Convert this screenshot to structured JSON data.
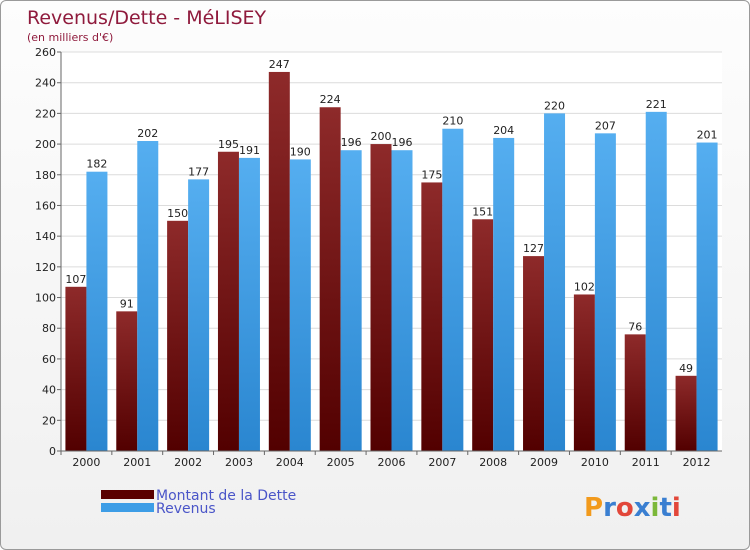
{
  "chart_data": {
    "type": "bar",
    "title": "Revenus/Dette - MéLISEY",
    "subtitle": "(en milliers d'€)",
    "categories": [
      "2000",
      "2001",
      "2002",
      "2003",
      "2004",
      "2005",
      "2006",
      "2007",
      "2008",
      "2009",
      "2010",
      "2011",
      "2012"
    ],
    "series": [
      {
        "name": "Montant de la Dette",
        "color": "#7a1414",
        "values": [
          107,
          91,
          150,
          195,
          247,
          224,
          200,
          175,
          151,
          127,
          102,
          76,
          49
        ]
      },
      {
        "name": "Revenus",
        "color": "#3d9de6",
        "values": [
          182,
          202,
          177,
          191,
          190,
          196,
          196,
          210,
          204,
          220,
          207,
          221,
          201
        ]
      }
    ],
    "ylim": [
      0,
      260
    ],
    "yticks": [
      0,
      20,
      40,
      60,
      80,
      100,
      120,
      140,
      160,
      180,
      200,
      220,
      240,
      260
    ],
    "grid": true,
    "legend_position": "bottom-left"
  },
  "logo": {
    "text": "Proxiti",
    "letters": [
      "P",
      "r",
      "o",
      "x",
      "i",
      "t",
      "i"
    ],
    "colors": [
      "#f29a1c",
      "#3a7fd1",
      "#e2473a",
      "#3a7fd1",
      "#7cb83a",
      "#3a7fd1",
      "#e2473a"
    ]
  }
}
